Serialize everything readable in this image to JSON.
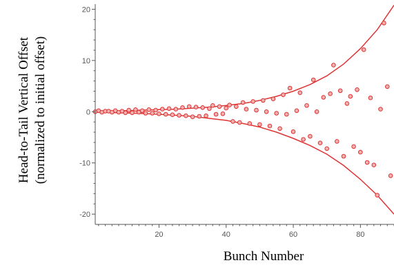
{
  "chart_data": {
    "type": "scatter",
    "title": "",
    "xlabel": "Bunch Number",
    "ylabel_line1": "Head-to-Tail Vertical Offset",
    "ylabel_line2": "(normalized to initial offset)",
    "xlim": [
      1,
      90
    ],
    "ylim": [
      -22,
      21
    ],
    "x_ticks": [
      20,
      40,
      60,
      80
    ],
    "y_ticks": [
      -20,
      -10,
      0,
      10,
      20
    ],
    "grid": false,
    "legend": "none",
    "colors": {
      "data": "#dd3333",
      "axis": "#555555"
    },
    "series": [
      {
        "kind": "points",
        "x": [
          1,
          2,
          3,
          4,
          5,
          6,
          7,
          8,
          9,
          10,
          11,
          12,
          13,
          14,
          15,
          16,
          17,
          18,
          19,
          20,
          21,
          22,
          23,
          24,
          25,
          26,
          27,
          28,
          29,
          30,
          31,
          32,
          33,
          34,
          35,
          36,
          37,
          38,
          39,
          40,
          41,
          42,
          43,
          44,
          45,
          46,
          47,
          48,
          49,
          50,
          51,
          52,
          53,
          54,
          55,
          56,
          57,
          58,
          59,
          60,
          61,
          62,
          63,
          64,
          65,
          66,
          67,
          68,
          69,
          70,
          71,
          72,
          73,
          74,
          75,
          76,
          77,
          78,
          79,
          80,
          81,
          82,
          83,
          84,
          85,
          86,
          87,
          88,
          89
        ],
        "y": [
          0,
          0.2,
          -0.1,
          0.1,
          0.1,
          -0.1,
          0.2,
          -0.1,
          0.1,
          -0.2,
          0.3,
          -0.2,
          0.4,
          -0.1,
          0.2,
          -0.3,
          0.4,
          -0.3,
          0.3,
          -0.4,
          0.5,
          -0.5,
          0.6,
          -0.6,
          0.5,
          -0.7,
          0.8,
          -0.8,
          1.0,
          -1.0,
          0.9,
          -0.9,
          0.8,
          -0.8,
          0.6,
          1.2,
          -0.5,
          1.0,
          -0.4,
          0.7,
          1.3,
          -1.9,
          1.0,
          -2.1,
          1.8,
          0.5,
          -2.3,
          2.0,
          0.3,
          -2.5,
          2.2,
          0,
          -2.8,
          2.5,
          -0.3,
          -3.3,
          3.3,
          -0.5,
          4.6,
          -3.9,
          0.2,
          3.7,
          -5.4,
          1.2,
          -4.8,
          6.2,
          0,
          -6.1,
          2.8,
          -7.2,
          3.5,
          9.1,
          -5.8,
          4.1,
          -8.7,
          1.6,
          3.0,
          -6.8,
          4.3,
          -7.9,
          12.1,
          -9.9,
          2.7,
          -10.4,
          -16.3,
          0.5,
          17.3,
          4.9,
          -12.5
        ]
      }
    ],
    "envelope": {
      "x": [
        1,
        5,
        10,
        15,
        20,
        25,
        30,
        35,
        40,
        45,
        50,
        55,
        60,
        65,
        70,
        75,
        80,
        85,
        90
      ],
      "upper": [
        0.1,
        0.15,
        0.2,
        0.3,
        0.4,
        0.5,
        0.7,
        0.9,
        1.2,
        1.6,
        2.2,
        3.0,
        4.0,
        5.3,
        7.0,
        9.3,
        12.3,
        16.0,
        20.8
      ],
      "lower": [
        -0.1,
        -0.15,
        -0.25,
        -0.35,
        -0.5,
        -0.7,
        -0.9,
        -1.3,
        -1.7,
        -2.3,
        -3.0,
        -4.0,
        -5.2,
        -6.6,
        -8.3,
        -10.5,
        -13.2,
        -16.3,
        -20.0
      ]
    }
  }
}
